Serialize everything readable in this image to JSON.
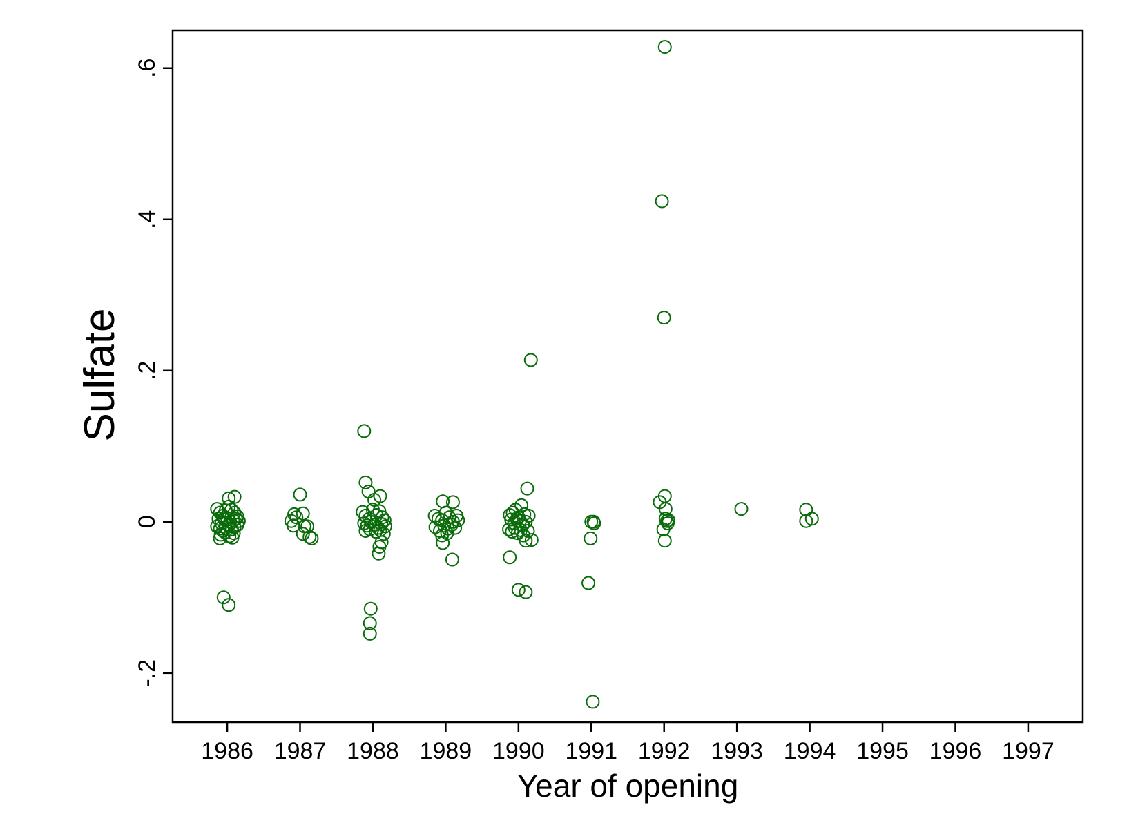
{
  "chart_data": {
    "type": "scatter",
    "title": "",
    "xlabel": "Year of opening",
    "ylabel": "Sulfate",
    "xlim": [
      1985.25,
      1997.75
    ],
    "ylim": [
      -0.265,
      0.65
    ],
    "xticks": [
      1986,
      1987,
      1988,
      1989,
      1990,
      1991,
      1992,
      1993,
      1994,
      1995,
      1996,
      1997
    ],
    "xtick_labels": [
      "1986",
      "1987",
      "1988",
      "1989",
      "1990",
      "1991",
      "1992",
      "1993",
      "1994",
      "1995",
      "1996",
      "1997"
    ],
    "yticks": [
      -0.2,
      0,
      0.2,
      0.4,
      0.6
    ],
    "ytick_labels": [
      "-.2",
      "0",
      ".2",
      ".4",
      ".6"
    ],
    "grid": false,
    "marker": "hollow-circle",
    "marker_color": "#0a6b0a",
    "series": [
      {
        "points": [
          [
            1985.86,
            0.017
          ],
          [
            1985.9,
            0.012
          ],
          [
            1985.94,
            0.008
          ],
          [
            1985.98,
            0.015
          ],
          [
            1986.02,
            0.02
          ],
          [
            1986.06,
            0.016
          ],
          [
            1986.1,
            0.012
          ],
          [
            1986.14,
            0.007
          ],
          [
            1985.88,
            0.004
          ],
          [
            1985.92,
            -0.002
          ],
          [
            1985.96,
            0.003
          ],
          [
            1986.0,
            0.005
          ],
          [
            1986.04,
            0.0
          ],
          [
            1986.08,
            0.002
          ],
          [
            1986.12,
            0.004
          ],
          [
            1986.16,
            0.001
          ],
          [
            1985.86,
            -0.006
          ],
          [
            1985.9,
            -0.009
          ],
          [
            1985.94,
            -0.012
          ],
          [
            1985.98,
            -0.008
          ],
          [
            1986.02,
            -0.005
          ],
          [
            1986.06,
            -0.01
          ],
          [
            1986.1,
            -0.007
          ],
          [
            1986.14,
            -0.004
          ],
          [
            1985.91,
            -0.017
          ],
          [
            1985.97,
            -0.014
          ],
          [
            1986.03,
            -0.019
          ],
          [
            1986.09,
            -0.015
          ],
          [
            1985.9,
            -0.022
          ],
          [
            1986.07,
            -0.021
          ],
          [
            1986.02,
            0.031
          ],
          [
            1986.1,
            0.033
          ],
          [
            1985.95,
            -0.1
          ],
          [
            1986.02,
            -0.11
          ],
          [
            1986.88,
            0.001
          ],
          [
            1986.92,
            0.01
          ],
          [
            1986.95,
            0.006
          ],
          [
            1986.91,
            -0.005
          ],
          [
            1987.0,
            0.036
          ],
          [
            1987.04,
            0.011
          ],
          [
            1987.06,
            -0.006
          ],
          [
            1987.04,
            -0.016
          ],
          [
            1987.1,
            -0.006
          ],
          [
            1987.13,
            -0.02
          ],
          [
            1987.16,
            -0.022
          ],
          [
            1987.88,
            0.12
          ],
          [
            1987.9,
            0.052
          ],
          [
            1987.94,
            0.04
          ],
          [
            1988.02,
            0.029
          ],
          [
            1988.1,
            0.034
          ],
          [
            1987.86,
            0.013
          ],
          [
            1987.9,
            0.008
          ],
          [
            1987.95,
            0.004
          ],
          [
            1988.0,
            0.016
          ],
          [
            1988.05,
            0.009
          ],
          [
            1988.09,
            0.014
          ],
          [
            1988.13,
            0.006
          ],
          [
            1988.16,
            0.002
          ],
          [
            1987.88,
            -0.002
          ],
          [
            1987.92,
            -0.005
          ],
          [
            1987.97,
            0.0
          ],
          [
            1988.02,
            -0.004
          ],
          [
            1988.07,
            -0.008
          ],
          [
            1988.12,
            -0.003
          ],
          [
            1988.17,
            -0.006
          ],
          [
            1987.9,
            -0.012
          ],
          [
            1987.96,
            -0.01
          ],
          [
            1988.04,
            -0.013
          ],
          [
            1988.1,
            -0.011
          ],
          [
            1988.15,
            -0.016
          ],
          [
            1988.12,
            -0.027
          ],
          [
            1988.09,
            -0.033
          ],
          [
            1988.08,
            -0.042
          ],
          [
            1987.97,
            -0.115
          ],
          [
            1987.96,
            -0.134
          ],
          [
            1987.96,
            -0.148
          ],
          [
            1988.85,
            0.008
          ],
          [
            1988.96,
            0.027
          ],
          [
            1989.1,
            0.026
          ],
          [
            1988.9,
            0.004
          ],
          [
            1988.95,
            0.002
          ],
          [
            1989.0,
            0.012
          ],
          [
            1989.05,
            0.006
          ],
          [
            1989.1,
            0.0
          ],
          [
            1989.15,
            0.008
          ],
          [
            1989.17,
            0.002
          ],
          [
            1988.86,
            -0.007
          ],
          [
            1988.92,
            -0.012
          ],
          [
            1988.98,
            -0.005
          ],
          [
            1989.03,
            -0.009
          ],
          [
            1989.08,
            -0.004
          ],
          [
            1989.13,
            -0.008
          ],
          [
            1988.95,
            -0.018
          ],
          [
            1989.02,
            -0.015
          ],
          [
            1988.96,
            -0.028
          ],
          [
            1989.09,
            -0.05
          ],
          [
            1989.88,
            0.009
          ],
          [
            1989.92,
            0.012
          ],
          [
            1989.96,
            0.016
          ],
          [
            1990.0,
            0.006
          ],
          [
            1990.04,
            0.022
          ],
          [
            1990.08,
            0.01
          ],
          [
            1990.12,
            0.044
          ],
          [
            1990.14,
            0.008
          ],
          [
            1989.9,
            0.003
          ],
          [
            1989.94,
            -0.002
          ],
          [
            1989.98,
            0.004
          ],
          [
            1990.02,
            0.001
          ],
          [
            1990.06,
            -0.004
          ],
          [
            1990.1,
            0.0
          ],
          [
            1989.87,
            -0.01
          ],
          [
            1989.91,
            -0.013
          ],
          [
            1989.95,
            -0.008
          ],
          [
            1989.99,
            -0.015
          ],
          [
            1990.03,
            -0.011
          ],
          [
            1990.07,
            -0.018
          ],
          [
            1990.13,
            -0.012
          ],
          [
            1990.1,
            -0.025
          ],
          [
            1990.18,
            -0.024
          ],
          [
            1989.88,
            -0.047
          ],
          [
            1990.0,
            -0.09
          ],
          [
            1990.1,
            -0.093
          ],
          [
            1990.17,
            0.214
          ],
          [
            1991.0,
            0.0
          ],
          [
            1991.04,
            -0.002
          ],
          [
            1991.03,
            0.0
          ],
          [
            1990.99,
            -0.022
          ],
          [
            1990.96,
            -0.081
          ],
          [
            1991.02,
            -0.238
          ],
          [
            1992.01,
            0.628
          ],
          [
            1991.97,
            0.424
          ],
          [
            1992.0,
            0.27
          ],
          [
            1991.94,
            0.026
          ],
          [
            1992.01,
            0.034
          ],
          [
            1992.02,
            0.017
          ],
          [
            1992.02,
            0.004
          ],
          [
            1992.04,
            0.001
          ],
          [
            1992.06,
            0.002
          ],
          [
            1992.05,
            -0.002
          ],
          [
            1991.99,
            -0.01
          ],
          [
            1992.01,
            -0.025
          ],
          [
            1993.06,
            0.017
          ],
          [
            1993.95,
            0.016
          ],
          [
            1993.95,
            0.001
          ],
          [
            1994.03,
            0.004
          ]
        ]
      }
    ]
  }
}
